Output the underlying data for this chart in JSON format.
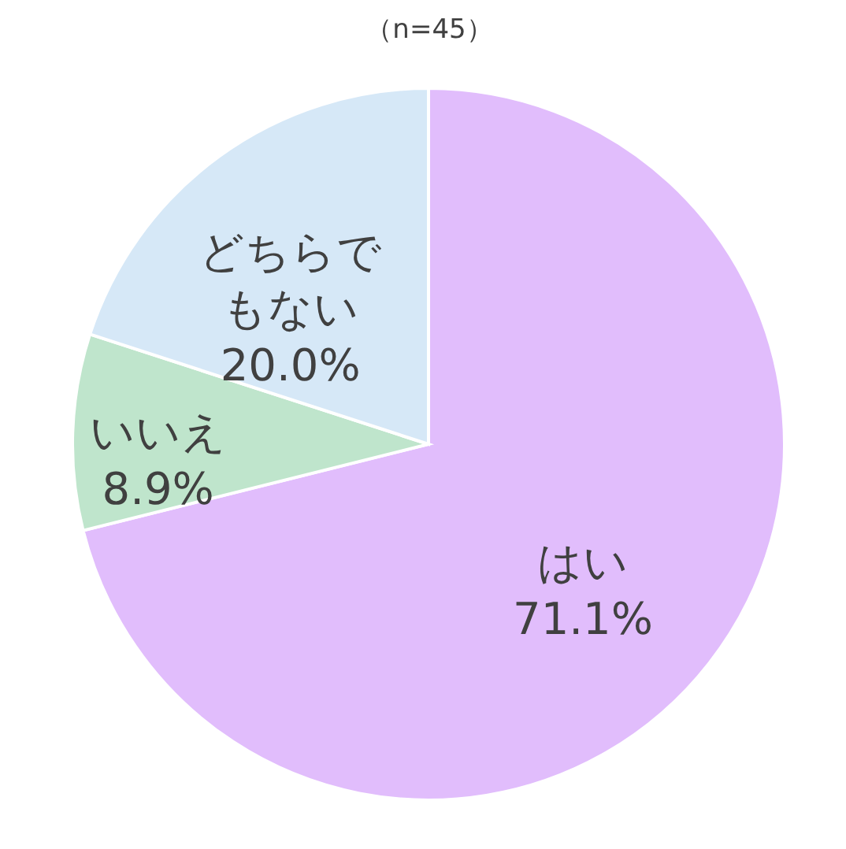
{
  "chart_data": {
    "type": "pie",
    "title": "（n=45）",
    "categories": [
      "はい",
      "いいえ",
      "どちらでもない"
    ],
    "values": [
      71.1,
      8.9,
      20.0
    ],
    "colors": [
      "#e1bdfc",
      "#bfe5cc",
      "#d6e8f7"
    ],
    "value_labels": [
      "71.1%",
      "8.9%",
      "20.0%"
    ]
  }
}
